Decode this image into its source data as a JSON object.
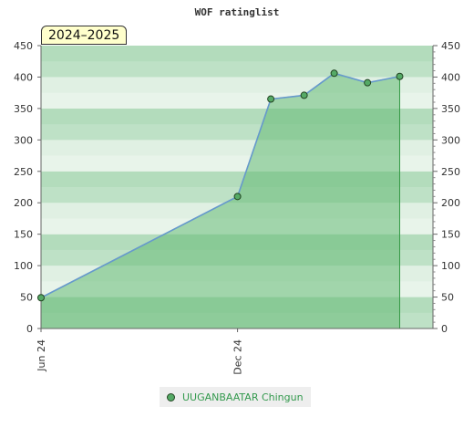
{
  "chart_data": {
    "type": "area",
    "title": "WOF ratinglist",
    "season_label": "2024–2025",
    "x_tick_labels": [
      "Jun 24",
      "Dec 24"
    ],
    "x_tick_dates": [
      "2024-06-01",
      "2024-12-01"
    ],
    "xlim": [
      "2024-06-01",
      "2025-06-01"
    ],
    "ylim": [
      0,
      450
    ],
    "y_ticks": [
      0,
      50,
      100,
      150,
      200,
      250,
      300,
      350,
      400,
      450
    ],
    "grid": true,
    "legend_position": "bottom",
    "colors": {
      "fill": "#66bb77",
      "line": "#6699cc",
      "marker": "#55aa66",
      "band_dark": "#b3dcbc",
      "band_light": "#e0f0e3"
    },
    "series": [
      {
        "name": "UUGANBAATAR Chingun",
        "points": [
          {
            "date": "2024-06-01",
            "value": 49
          },
          {
            "date": "2024-12-01",
            "value": 210
          },
          {
            "date": "2025-01-01",
            "value": 365
          },
          {
            "date": "2025-02-01",
            "value": 371
          },
          {
            "date": "2025-03-01",
            "value": 406
          },
          {
            "date": "2025-04-01",
            "value": 391
          },
          {
            "date": "2025-05-01",
            "value": 401
          }
        ]
      }
    ]
  }
}
